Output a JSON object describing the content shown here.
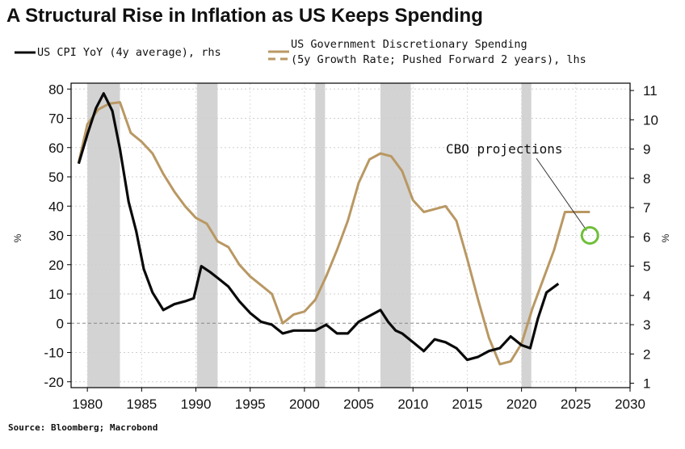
{
  "title": "A Structural Rise in Inflation as US Keeps Spending",
  "legend": {
    "cpi_label": "US CPI YoY (4y average), rhs",
    "spending_label_line1": "US Government Discretionary Spending",
    "spending_label_line2": "(5y Growth Rate; Pushed Forward 2 years), lhs"
  },
  "annotation": "CBO projections",
  "source": "Source: Bloomberg; Macrobond",
  "colors": {
    "cpi": "#0a0a0a",
    "spending": "#b99863",
    "recession": "#d3d3d3",
    "marker": "#6fbf3a"
  },
  "chart_data": {
    "type": "line",
    "title": "A Structural Rise in Inflation as US Keeps Spending",
    "x_ticks": [
      "1980",
      "1985",
      "1990",
      "1995",
      "2000",
      "2005",
      "2010",
      "2015",
      "2020",
      "2025",
      "2030"
    ],
    "xlim": [
      1978.5,
      2030
    ],
    "left_axis": {
      "label": "%",
      "ylim": [
        -22,
        82
      ],
      "ticks": [
        "80",
        "70",
        "60",
        "50",
        "40",
        "30",
        "20",
        "10",
        "0",
        "-10",
        "-20"
      ]
    },
    "right_axis": {
      "label": "%",
      "ylim": [
        0.85,
        11.25
      ],
      "ticks": [
        "11",
        "10",
        "9",
        "8",
        "7",
        "6",
        "5",
        "4",
        "3",
        "2",
        "1"
      ]
    },
    "recessions": [
      [
        1980,
        1983
      ],
      [
        1990.1,
        1992
      ],
      [
        2001,
        2001.9
      ],
      [
        2007,
        2009.8
      ],
      [
        2020,
        2020.9
      ]
    ],
    "series": [
      {
        "name": "US Government Discretionary Spending (5y Growth Rate; Pushed Forward 2 years)",
        "axis": "left",
        "x": [
          1979.2,
          1980,
          1981,
          1982,
          1983,
          1984,
          1985,
          1986,
          1987,
          1988,
          1989,
          1990,
          1991,
          1992,
          1993,
          1994,
          1995,
          1996,
          1997,
          1998,
          1999,
          2000,
          2001,
          2002,
          2003,
          2004,
          2005,
          2006,
          2007,
          2008,
          2009,
          2010,
          2011,
          2012,
          2013,
          2014,
          2015,
          2016,
          2017,
          2018,
          2019,
          2020,
          2021,
          2022,
          2023,
          2024,
          2025,
          2026.3
        ],
        "values": [
          55,
          68,
          73,
          75,
          75.5,
          65,
          62,
          58,
          51,
          45,
          40,
          36,
          34,
          28,
          26,
          20,
          16,
          13,
          10,
          0,
          3,
          4,
          8,
          16,
          25,
          35,
          48,
          56,
          58,
          57,
          52,
          42,
          38,
          39,
          40,
          35,
          22,
          8,
          -5,
          -14,
          -13,
          -7,
          5,
          15,
          25,
          38,
          38,
          38
        ]
      },
      {
        "name": "US CPI YoY (4y average)",
        "axis": "right",
        "x": [
          1979.2,
          1980,
          1980.8,
          1981.5,
          1982.3,
          1983,
          1983.8,
          1984.5,
          1985.2,
          1986,
          1987,
          1988,
          1989,
          1989.8,
          1990.5,
          1991.3,
          1992,
          1993,
          1994,
          1995,
          1996,
          1997,
          1998,
          1999,
          2000,
          2001,
          2002,
          2003,
          2004,
          2005,
          2006,
          2007,
          2007.7,
          2008.4,
          2009,
          2010,
          2011,
          2012,
          2013,
          2014,
          2015,
          2016,
          2017,
          2018,
          2019,
          2020,
          2020.8,
          2021.5,
          2022.3,
          2023.4
        ],
        "values": [
          8.5,
          9.5,
          10.4,
          10.9,
          10.3,
          9.0,
          7.2,
          6.2,
          4.9,
          4.1,
          3.5,
          3.7,
          3.8,
          3.9,
          5.0,
          4.8,
          4.6,
          4.3,
          3.8,
          3.4,
          3.1,
          3.0,
          2.7,
          2.8,
          2.8,
          2.8,
          3.0,
          2.7,
          2.7,
          3.1,
          3.3,
          3.5,
          3.1,
          2.8,
          2.7,
          2.4,
          2.1,
          2.5,
          2.4,
          2.2,
          1.8,
          1.9,
          2.1,
          2.2,
          2.6,
          2.3,
          2.2,
          3.2,
          4.1,
          4.4
        ]
      }
    ],
    "annotations": [
      {
        "text": "CBO projections",
        "x": 2026.3,
        "y_left": 30
      }
    ]
  }
}
